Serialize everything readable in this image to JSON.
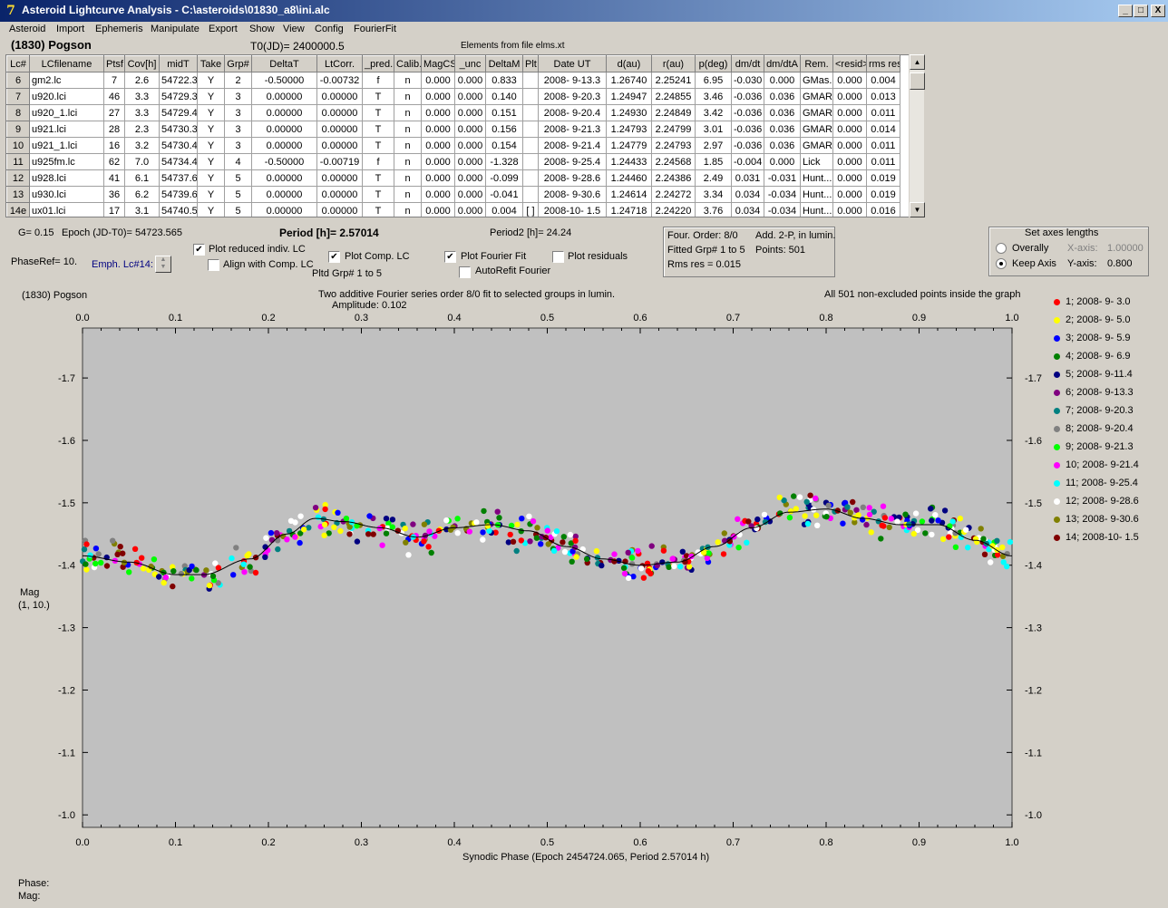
{
  "window": {
    "title": "Asteroid Lightcurve Analysis - C:\\asteroids\\01830_a8\\ini.alc",
    "app_icon": "app-logo",
    "buttons": [
      "_",
      "□",
      "X"
    ]
  },
  "menu": [
    "Asteroid",
    "Import",
    "Ephemeris",
    "Manipulate",
    "Export",
    "Show",
    "View",
    "Config",
    "FourierFit"
  ],
  "header": {
    "asteroid": "(1830) Pogson",
    "t0": "T0(JD)= 2400000.5",
    "elements": "Elements from file elms.xt"
  },
  "table": {
    "columns": [
      "Lc#",
      "LCfilename",
      "Ptsf",
      "Cov[h]",
      "midT",
      "Take",
      "Grp#",
      "DeltaT",
      "LtCorr.",
      "_pred.",
      "Calib.",
      "MagCS",
      "_unc",
      "DeltaM",
      "Plt",
      "Date UT",
      "d(au)",
      "r(au)",
      "p(deg)",
      "dm/dt",
      "dm/dtA",
      "Rem.",
      "<resid>",
      "rms res"
    ],
    "rows": [
      [
        "6",
        "gm2.lc",
        "7",
        "2.6",
        "54722.3",
        "Y",
        "2",
        "-0.50000",
        "-0.00732",
        "f",
        "n",
        "0.000",
        "0.000",
        "0.833",
        "",
        "2008- 9-13.3",
        "1.26740",
        "2.25241",
        "6.95",
        "-0.030",
        "0.000",
        "GMas..",
        "0.000",
        "0.004"
      ],
      [
        "7",
        "u920.lci",
        "46",
        "3.3",
        "54729.3",
        "Y",
        "3",
        "0.00000",
        "0.00000",
        "T",
        "n",
        "0.000",
        "0.000",
        "0.140",
        "",
        "2008- 9-20.3",
        "1.24947",
        "2.24855",
        "3.46",
        "-0.036",
        "0.036",
        "GMAR",
        "0.000",
        "0.013"
      ],
      [
        "8",
        "u920_1.lci",
        "27",
        "3.3",
        "54729.4",
        "Y",
        "3",
        "0.00000",
        "0.00000",
        "T",
        "n",
        "0.000",
        "0.000",
        "0.151",
        "",
        "2008- 9-20.4",
        "1.24930",
        "2.24849",
        "3.42",
        "-0.036",
        "0.036",
        "GMAR",
        "0.000",
        "0.011"
      ],
      [
        "9",
        "u921.lci",
        "28",
        "2.3",
        "54730.3",
        "Y",
        "3",
        "0.00000",
        "0.00000",
        "T",
        "n",
        "0.000",
        "0.000",
        "0.156",
        "",
        "2008- 9-21.3",
        "1.24793",
        "2.24799",
        "3.01",
        "-0.036",
        "0.036",
        "GMAR",
        "0.000",
        "0.014"
      ],
      [
        "10",
        "u921_1.lci",
        "16",
        "3.2",
        "54730.4",
        "Y",
        "3",
        "0.00000",
        "0.00000",
        "T",
        "n",
        "0.000",
        "0.000",
        "0.154",
        "",
        "2008- 9-21.4",
        "1.24779",
        "2.24793",
        "2.97",
        "-0.036",
        "0.036",
        "GMAR",
        "0.000",
        "0.011"
      ],
      [
        "11",
        "u925fm.lc",
        "62",
        "7.0",
        "54734.4",
        "Y",
        "4",
        "-0.50000",
        "-0.00719",
        "f",
        "n",
        "0.000",
        "0.000",
        "-1.328",
        "",
        "2008- 9-25.4",
        "1.24433",
        "2.24568",
        "1.85",
        "-0.004",
        "0.000",
        "Lick",
        "0.000",
        "0.011"
      ],
      [
        "12",
        "u928.lci",
        "41",
        "6.1",
        "54737.6",
        "Y",
        "5",
        "0.00000",
        "0.00000",
        "T",
        "n",
        "0.000",
        "0.000",
        "-0.099",
        "",
        "2008- 9-28.6",
        "1.24460",
        "2.24386",
        "2.49",
        "0.031",
        "-0.031",
        "Hunt...",
        "0.000",
        "0.019"
      ],
      [
        "13",
        "u930.lci",
        "36",
        "6.2",
        "54739.6",
        "Y",
        "5",
        "0.00000",
        "0.00000",
        "T",
        "n",
        "0.000",
        "0.000",
        "-0.041",
        "",
        "2008- 9-30.6",
        "1.24614",
        "2.24272",
        "3.34",
        "0.034",
        "-0.034",
        "Hunt...",
        "0.000",
        "0.019"
      ],
      [
        "14e",
        "ux01.lci",
        "17",
        "3.1",
        "54740.5",
        "Y",
        "5",
        "0.00000",
        "0.00000",
        "T",
        "n",
        "0.000",
        "0.000",
        "0.004",
        "[ ]",
        "2008-10- 1.5",
        "1.24718",
        "2.24220",
        "3.76",
        "0.034",
        "-0.034",
        "Hunt...",
        "0.000",
        "0.016"
      ]
    ]
  },
  "controls": {
    "g": "G= 0.15",
    "epoch": "Epoch (JD-T0)= 54723.565",
    "period": "Period [h]= 2.57014",
    "period2": "Period2 [h]= 24.24",
    "phaseref": "PhaseRef= 10.",
    "emph": "Emph. Lc#14:",
    "plot_reduced": "Plot reduced indiv. LC",
    "align_comp": "Align with Comp. LC",
    "plot_comp": "Plot Comp. LC",
    "pltd_grp": "Pltd Grp#  1   to   5",
    "plot_fourier": "Plot Fourier Fit",
    "autorefit": "AutoRefit Fourier",
    "plot_residuals": "Plot residuals",
    "check_plot_reduced": true,
    "check_align_comp": false,
    "check_plot_comp": true,
    "check_plot_fourier": true,
    "check_autorefit": false,
    "check_plot_residuals": false
  },
  "fourier_info": {
    "order": "Four. Order:  8/0",
    "add": "Add. 2-P, in lumin.",
    "fitted": "Fitted Grp# 1 to 5",
    "points": "Points: 501",
    "rms": "Rms res      = 0.015"
  },
  "axes_lengths": {
    "title": "Set axes lengths",
    "overally": "Overally",
    "keep_axis": "Keep Axis",
    "x_label": "X-axis:",
    "x_value": "1.00000",
    "y_label": "Y-axis:",
    "y_value": "0.800",
    "selected": "keep_axis"
  },
  "plot": {
    "name": "(1830) Pogson",
    "subtitle": "Two additive Fourier series order 8/0 fit to selected groups in lumin.",
    "amplitude": "Amplitude: 0.102",
    "note": "All 501 non-excluded points inside the graph",
    "ylabel": "Mag",
    "ylabel2": "(1, 10.)",
    "xlabel": "Synodic Phase (Epoch 2454724.065, Period 2.57014 h)",
    "status_phase": "Phase:",
    "status_mag": "Mag:",
    "legend": [
      {
        "label": "1; 2008- 9- 3.0",
        "color": "#ff0000"
      },
      {
        "label": "2; 2008- 9- 5.0",
        "color": "#ffff00"
      },
      {
        "label": "3; 2008- 9- 5.9",
        "color": "#0000ff"
      },
      {
        "label": "4; 2008- 9- 6.9",
        "color": "#008000"
      },
      {
        "label": "5; 2008- 9-11.4",
        "color": "#000080"
      },
      {
        "label": "6; 2008- 9-13.3",
        "color": "#800080"
      },
      {
        "label": "7; 2008- 9-20.3",
        "color": "#008080"
      },
      {
        "label": "8; 2008- 9-20.4",
        "color": "#808080"
      },
      {
        "label": "9; 2008- 9-21.3",
        "color": "#00ff00"
      },
      {
        "label": "10; 2008- 9-21.4",
        "color": "#ff00ff"
      },
      {
        "label": "11; 2008- 9-25.4",
        "color": "#00ffff"
      },
      {
        "label": "12; 2008- 9-28.6",
        "color": "#ffffff"
      },
      {
        "label": "13; 2008- 9-30.6",
        "color": "#808000"
      },
      {
        "label": "14; 2008-10- 1.5",
        "color": "#800000"
      }
    ]
  },
  "chart_data": {
    "type": "scatter",
    "title": "Two additive Fourier series order 8/0 fit to selected groups in lumin.",
    "xlabel": "Synodic Phase (Epoch 2454724.065, Period 2.57014 h)",
    "ylabel": "Mag",
    "xlim": [
      0.0,
      1.0
    ],
    "ylim": [
      -1.78,
      -0.98
    ],
    "y_inverted": true,
    "x_ticks": [
      "0.0",
      "0.1",
      "0.2",
      "0.3",
      "0.4",
      "0.5",
      "0.6",
      "0.7",
      "0.8",
      "0.9",
      "1.0"
    ],
    "y_ticks": [
      "-1.7",
      "-1.6",
      "-1.5",
      "-1.4",
      "-1.3",
      "-1.2",
      "-1.1",
      "-1.0"
    ],
    "fit_curve": {
      "x": [
        0.0,
        0.05,
        0.1,
        0.13,
        0.18,
        0.22,
        0.25,
        0.28,
        0.32,
        0.36,
        0.4,
        0.44,
        0.48,
        0.52,
        0.56,
        0.6,
        0.64,
        0.68,
        0.72,
        0.76,
        0.8,
        0.84,
        0.88,
        0.92,
        0.96,
        1.0
      ],
      "y": [
        -1.415,
        -1.405,
        -1.385,
        -1.385,
        -1.41,
        -1.45,
        -1.475,
        -1.47,
        -1.46,
        -1.445,
        -1.46,
        -1.465,
        -1.455,
        -1.43,
        -1.41,
        -1.4,
        -1.405,
        -1.43,
        -1.46,
        -1.485,
        -1.49,
        -1.475,
        -1.465,
        -1.465,
        -1.44,
        -1.415
      ]
    },
    "scatter_points": 501
  }
}
